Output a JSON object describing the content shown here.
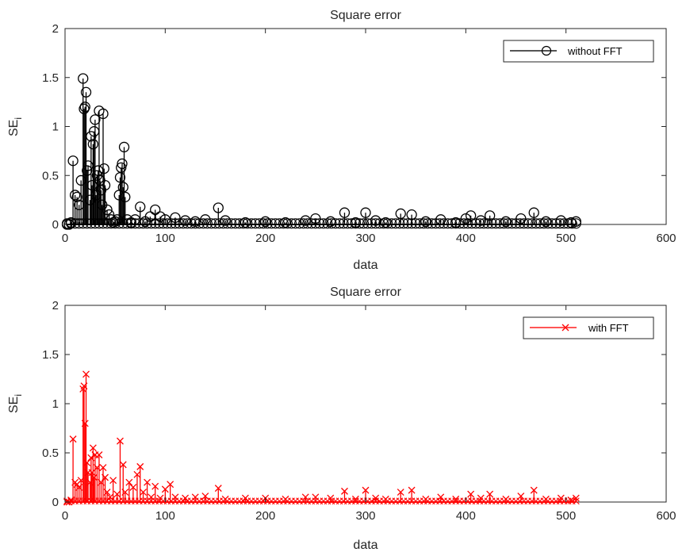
{
  "chart_data": [
    {
      "type": "stem",
      "title": "Square error",
      "xlabel": "data",
      "ylabel": "SE",
      "ylabel_subscript": "i",
      "xlim": [
        0,
        600
      ],
      "ylim": [
        0,
        2
      ],
      "xticks": [
        0,
        100,
        200,
        300,
        400,
        500,
        600
      ],
      "yticks": [
        0,
        0.5,
        1,
        1.5,
        2
      ],
      "xtick_labels": [
        "0",
        "100",
        "200",
        "300",
        "400",
        "500",
        "600"
      ],
      "ytick_labels": [
        "0",
        "0.5",
        "1",
        "1.5",
        "2"
      ],
      "grid": false,
      "legend": "top-right",
      "series": [
        {
          "name": "without FFT",
          "marker": "circle",
          "color": "#000000",
          "points": [
            [
              2,
              0.0
            ],
            [
              4,
              0.0
            ],
            [
              6,
              0.02
            ],
            [
              8,
              0.65
            ],
            [
              10,
              0.3
            ],
            [
              12,
              0.28
            ],
            [
              14,
              0.2
            ],
            [
              16,
              0.45
            ],
            [
              18,
              1.49
            ],
            [
              19,
              1.18
            ],
            [
              20,
              1.2
            ],
            [
              21,
              1.35
            ],
            [
              22,
              0.55
            ],
            [
              23,
              0.6
            ],
            [
              25,
              0.25
            ],
            [
              26,
              0.9
            ],
            [
              27,
              0.4
            ],
            [
              28,
              0.82
            ],
            [
              29,
              0.95
            ],
            [
              30,
              1.07
            ],
            [
              31,
              0.3
            ],
            [
              32,
              0.5
            ],
            [
              33,
              0.55
            ],
            [
              34,
              1.16
            ],
            [
              35,
              0.45
            ],
            [
              36,
              0.35
            ],
            [
              37,
              0.2
            ],
            [
              38,
              1.13
            ],
            [
              39,
              0.57
            ],
            [
              40,
              0.4
            ],
            [
              42,
              0.15
            ],
            [
              44,
              0.1
            ],
            [
              46,
              0.05
            ],
            [
              48,
              0.02
            ],
            [
              50,
              0.03
            ],
            [
              52,
              0.05
            ],
            [
              54,
              0.3
            ],
            [
              55,
              0.48
            ],
            [
              56,
              0.58
            ],
            [
              57,
              0.62
            ],
            [
              58,
              0.38
            ],
            [
              59,
              0.79
            ],
            [
              60,
              0.28
            ],
            [
              62,
              0.05
            ],
            [
              66,
              0.02
            ],
            [
              70,
              0.05
            ],
            [
              75,
              0.18
            ],
            [
              80,
              0.03
            ],
            [
              85,
              0.08
            ],
            [
              90,
              0.15
            ],
            [
              95,
              0.08
            ],
            [
              100,
              0.05
            ],
            [
              110,
              0.07
            ],
            [
              120,
              0.04
            ],
            [
              130,
              0.03
            ],
            [
              140,
              0.05
            ],
            [
              153,
              0.17
            ],
            [
              160,
              0.04
            ],
            [
              180,
              0.02
            ],
            [
              200,
              0.03
            ],
            [
              220,
              0.02
            ],
            [
              240,
              0.04
            ],
            [
              250,
              0.06
            ],
            [
              265,
              0.03
            ],
            [
              279,
              0.12
            ],
            [
              290,
              0.02
            ],
            [
              300,
              0.12
            ],
            [
              310,
              0.04
            ],
            [
              320,
              0.02
            ],
            [
              335,
              0.11
            ],
            [
              346,
              0.1
            ],
            [
              360,
              0.03
            ],
            [
              375,
              0.05
            ],
            [
              390,
              0.02
            ],
            [
              400,
              0.06
            ],
            [
              405,
              0.09
            ],
            [
              415,
              0.04
            ],
            [
              424,
              0.09
            ],
            [
              440,
              0.03
            ],
            [
              455,
              0.06
            ],
            [
              468,
              0.12
            ],
            [
              480,
              0.03
            ],
            [
              495,
              0.04
            ],
            [
              505,
              0.02
            ],
            [
              510,
              0.03
            ]
          ]
        }
      ]
    },
    {
      "type": "stem",
      "title": "Square error",
      "xlabel": "data",
      "ylabel": "SE",
      "ylabel_subscript": "i",
      "xlim": [
        0,
        600
      ],
      "ylim": [
        0,
        2
      ],
      "xticks": [
        0,
        100,
        200,
        300,
        400,
        500,
        600
      ],
      "yticks": [
        0,
        0.5,
        1,
        1.5,
        2
      ],
      "xtick_labels": [
        "0",
        "100",
        "200",
        "300",
        "400",
        "500",
        "600"
      ],
      "ytick_labels": [
        "0",
        "0.5",
        "1",
        "1.5",
        "2"
      ],
      "grid": false,
      "legend": "top-right",
      "series": [
        {
          "name": "with FFT",
          "marker": "x",
          "color": "#ff0000",
          "points": [
            [
              2,
              0.0
            ],
            [
              4,
              0.0
            ],
            [
              6,
              0.02
            ],
            [
              8,
              0.64
            ],
            [
              10,
              0.2
            ],
            [
              12,
              0.18
            ],
            [
              14,
              0.15
            ],
            [
              16,
              0.22
            ],
            [
              18,
              1.15
            ],
            [
              19,
              1.18
            ],
            [
              20,
              0.8
            ],
            [
              21,
              1.3
            ],
            [
              22,
              0.4
            ],
            [
              23,
              0.3
            ],
            [
              25,
              0.2
            ],
            [
              26,
              0.45
            ],
            [
              27,
              0.3
            ],
            [
              28,
              0.55
            ],
            [
              29,
              0.25
            ],
            [
              30,
              0.48
            ],
            [
              32,
              0.35
            ],
            [
              34,
              0.48
            ],
            [
              36,
              0.2
            ],
            [
              38,
              0.35
            ],
            [
              40,
              0.25
            ],
            [
              42,
              0.1
            ],
            [
              45,
              0.05
            ],
            [
              48,
              0.22
            ],
            [
              52,
              0.08
            ],
            [
              55,
              0.62
            ],
            [
              58,
              0.38
            ],
            [
              60,
              0.1
            ],
            [
              64,
              0.2
            ],
            [
              68,
              0.15
            ],
            [
              72,
              0.28
            ],
            [
              75,
              0.36
            ],
            [
              78,
              0.1
            ],
            [
              82,
              0.2
            ],
            [
              86,
              0.05
            ],
            [
              90,
              0.16
            ],
            [
              95,
              0.04
            ],
            [
              100,
              0.13
            ],
            [
              105,
              0.18
            ],
            [
              110,
              0.05
            ],
            [
              120,
              0.04
            ],
            [
              130,
              0.05
            ],
            [
              140,
              0.06
            ],
            [
              153,
              0.14
            ],
            [
              160,
              0.03
            ],
            [
              180,
              0.04
            ],
            [
              200,
              0.04
            ],
            [
              220,
              0.03
            ],
            [
              240,
              0.05
            ],
            [
              250,
              0.05
            ],
            [
              265,
              0.04
            ],
            [
              279,
              0.11
            ],
            [
              290,
              0.03
            ],
            [
              300,
              0.12
            ],
            [
              310,
              0.04
            ],
            [
              320,
              0.03
            ],
            [
              335,
              0.1
            ],
            [
              346,
              0.12
            ],
            [
              360,
              0.03
            ],
            [
              375,
              0.05
            ],
            [
              390,
              0.03
            ],
            [
              405,
              0.08
            ],
            [
              415,
              0.04
            ],
            [
              424,
              0.08
            ],
            [
              440,
              0.03
            ],
            [
              455,
              0.06
            ],
            [
              468,
              0.12
            ],
            [
              480,
              0.03
            ],
            [
              495,
              0.04
            ],
            [
              505,
              0.02
            ],
            [
              510,
              0.04
            ]
          ]
        }
      ]
    }
  ]
}
